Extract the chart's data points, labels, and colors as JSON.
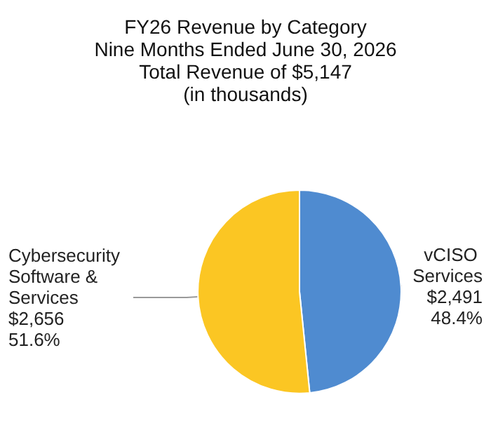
{
  "chart_data": {
    "type": "pie",
    "title": "FY26 Revenue by Category",
    "subtitle": "Nine Months Ended June 30, 2026\nTotal Revenue of $5,147\n(in thousands)",
    "categories": [
      "vCISO Services",
      "Cybersecurity Software & Services"
    ],
    "values": [
      2491,
      2656
    ],
    "colors": [
      "#4f8bd0",
      "#fbc623"
    ],
    "value_labels": [
      "$2,491\n48.4%",
      "$2,656\n51.6%"
    ],
    "legend": false
  }
}
